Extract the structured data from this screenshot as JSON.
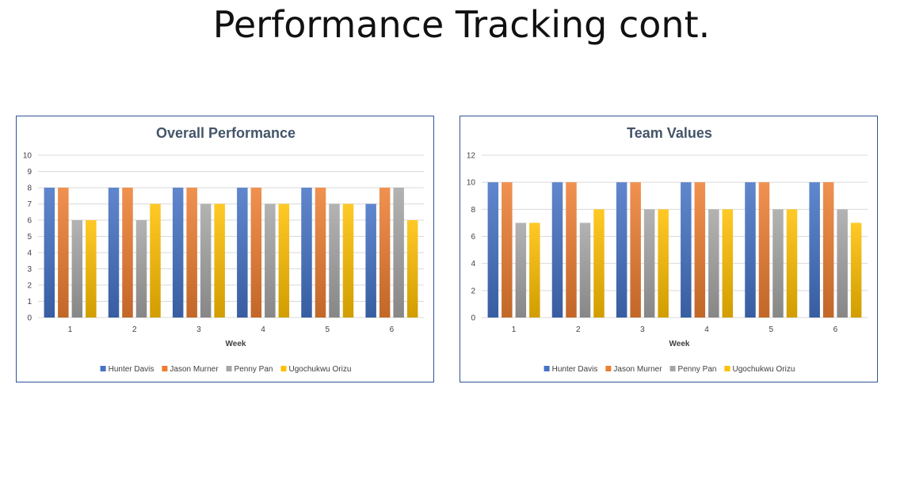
{
  "slide": {
    "title": "Performance Tracking cont."
  },
  "chart_data": [
    {
      "type": "bar",
      "title": "Overall Performance",
      "xlabel": "Week",
      "ylabel": "",
      "categories": [
        "1",
        "2",
        "3",
        "4",
        "5",
        "6"
      ],
      "ylim": [
        0,
        10
      ],
      "yticks": [
        0,
        1,
        2,
        3,
        4,
        5,
        6,
        7,
        8,
        9,
        10
      ],
      "grid": true,
      "legend_position": "bottom",
      "series": [
        {
          "name": "Hunter Davis",
          "color": "#4472c4",
          "values": [
            8,
            8,
            8,
            8,
            8,
            7
          ]
        },
        {
          "name": "Jason Murner",
          "color": "#ed7d31",
          "values": [
            8,
            8,
            8,
            8,
            8,
            8
          ]
        },
        {
          "name": "Penny Pan",
          "color": "#a5a5a5",
          "values": [
            6,
            6,
            7,
            7,
            7,
            8
          ]
        },
        {
          "name": "Ugochukwu Orizu",
          "color": "#ffc000",
          "values": [
            6,
            7,
            7,
            7,
            7,
            6
          ]
        }
      ]
    },
    {
      "type": "bar",
      "title": "Team Values",
      "xlabel": "Week",
      "ylabel": "",
      "categories": [
        "1",
        "2",
        "3",
        "4",
        "5",
        "6"
      ],
      "ylim": [
        0,
        12
      ],
      "yticks": [
        0,
        2,
        4,
        6,
        8,
        10,
        12
      ],
      "grid": true,
      "legend_position": "bottom",
      "series": [
        {
          "name": "Hunter Davis",
          "color": "#4472c4",
          "values": [
            10,
            10,
            10,
            10,
            10,
            10
          ]
        },
        {
          "name": "Jason Murner",
          "color": "#ed7d31",
          "values": [
            10,
            10,
            10,
            10,
            10,
            10
          ]
        },
        {
          "name": "Penny Pan",
          "color": "#a5a5a5",
          "values": [
            7,
            7,
            8,
            8,
            8,
            8
          ]
        },
        {
          "name": "Ugochukwu Orizu",
          "color": "#ffc000",
          "values": [
            7,
            8,
            8,
            8,
            8,
            7
          ]
        }
      ]
    }
  ]
}
